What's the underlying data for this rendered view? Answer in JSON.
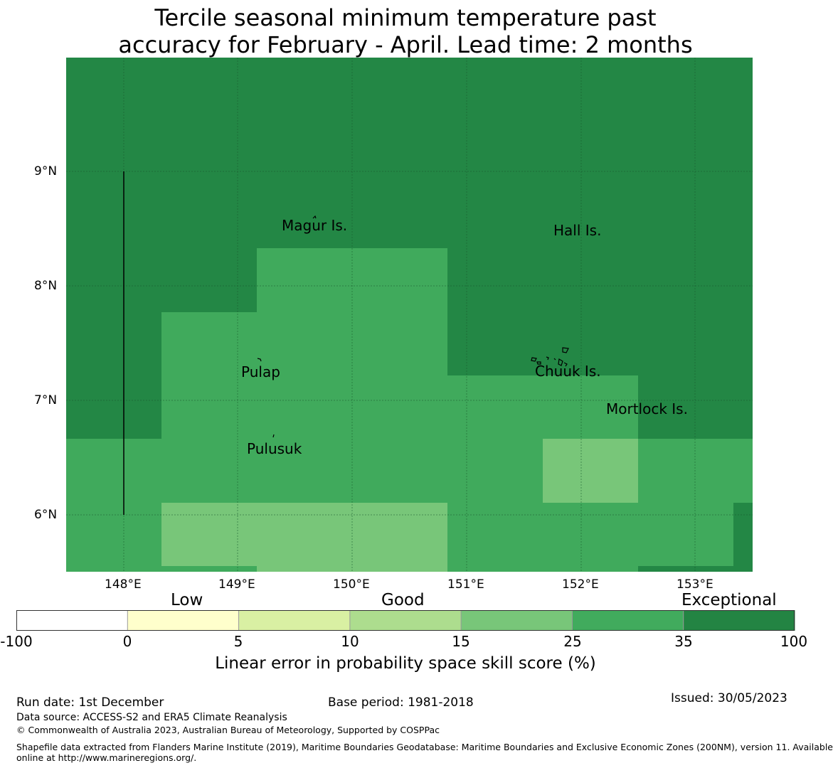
{
  "title": {
    "line1": "Tercile seasonal minimum temperature past",
    "line2": "accuracy for February - April. Lead time: 2 months"
  },
  "map": {
    "lat_ticks": [
      "9°N",
      "8°N",
      "7°N",
      "6°N"
    ],
    "lon_ticks": [
      "148°E",
      "149°E",
      "150°E",
      "151°E",
      "152°E",
      "153°E"
    ],
    "places": [
      {
        "id": "magur",
        "name": "Magur Is."
      },
      {
        "id": "hall",
        "name": "Hall Is."
      },
      {
        "id": "pulap",
        "name": "Pulap"
      },
      {
        "id": "chuuk",
        "name": "Chuuk Is."
      },
      {
        "id": "mortlock",
        "name": "Mortlock Is."
      },
      {
        "id": "pulusuk",
        "name": "Pulusuk"
      }
    ],
    "colors": {
      "exceptional": "#238745",
      "skill_25_35": "#40aa5c",
      "skill_15_25": "#78c679",
      "grid": "#1a5a2e"
    }
  },
  "legend": {
    "categories": [
      "Low",
      "Good",
      "Exceptional"
    ],
    "ticks": [
      "-100",
      "0",
      "5",
      "10",
      "15",
      "25",
      "35",
      "100"
    ],
    "colors": [
      "#ffffff",
      "#ffffcc",
      "#d9f0a3",
      "#addd8e",
      "#78c679",
      "#41ab5d",
      "#238443"
    ],
    "title": "Linear error in probability space skill score (%)"
  },
  "footer": {
    "run_date": "Run date: 1st December",
    "base_period": "Base period: 1981-2018",
    "issued": "Issued: 30/05/2023",
    "data_source": "Data source: ACCESS-S2 and ERA5 Climate Reanalysis",
    "copyright": "© Commonwealth of Australia 2023, Australian Bureau of Meteorology, Supported by COSPPac",
    "shapefile_1": "Shapefile data extracted from Flanders Marine Institute (2019), Maritime Boundaries Geodatabase: Maritime Boundaries and Exclusive Economic Zones (200NM), version 11. Available",
    "shapefile_2": "online at http://www.marineregions.org/."
  }
}
